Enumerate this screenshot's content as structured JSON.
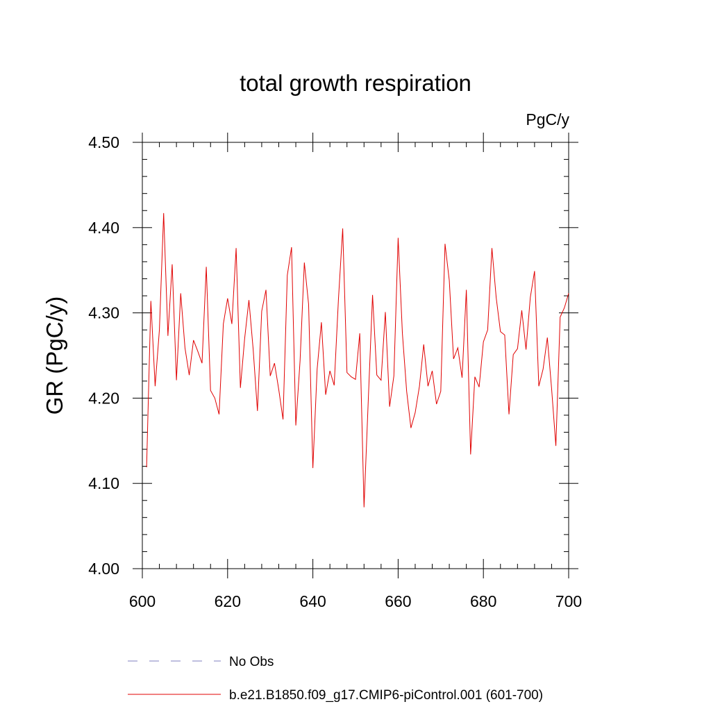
{
  "chart_data": {
    "type": "line",
    "title": "total growth respiration",
    "units": "PgC/y",
    "xlabel": "",
    "ylabel": "GR  (PgC/y)",
    "xlim": [
      600,
      700
    ],
    "ylim": [
      4.0,
      4.5
    ],
    "x_ticks": [
      "600",
      "620",
      "640",
      "660",
      "680",
      "700"
    ],
    "y_ticks": [
      "4.00",
      "4.10",
      "4.20",
      "4.30",
      "4.40",
      "4.50"
    ],
    "grid": false,
    "legend_position": "bottom",
    "legend": [
      {
        "label": "No Obs",
        "style": "dashed",
        "color": "#7f7fbf"
      },
      {
        "label": "b.e21.B1850.f09_g17.CMIP6-piControl.001 (601-700)",
        "style": "solid",
        "color": "#e00000"
      }
    ],
    "series": [
      {
        "name": "b.e21.B1850.f09_g17.CMIP6-piControl.001 (601-700)",
        "color": "#e00000",
        "x": [
          601,
          602,
          603,
          604,
          605,
          606,
          607,
          608,
          609,
          610,
          611,
          612,
          613,
          614,
          615,
          616,
          617,
          618,
          619,
          620,
          621,
          622,
          623,
          624,
          625,
          626,
          627,
          628,
          629,
          630,
          631,
          632,
          633,
          634,
          635,
          636,
          637,
          638,
          639,
          640,
          641,
          642,
          643,
          644,
          645,
          646,
          647,
          648,
          649,
          650,
          651,
          652,
          653,
          654,
          655,
          656,
          657,
          658,
          659,
          660,
          661,
          662,
          663,
          664,
          665,
          666,
          667,
          668,
          669,
          670,
          671,
          672,
          673,
          674,
          675,
          676,
          677,
          678,
          679,
          680,
          681,
          682,
          683,
          684,
          685,
          686,
          687,
          688,
          689,
          690,
          691,
          692,
          693,
          694,
          695,
          696,
          697,
          698,
          699,
          700
        ],
        "values": [
          4.119,
          4.314,
          4.214,
          4.28,
          4.417,
          4.273,
          4.357,
          4.221,
          4.323,
          4.259,
          4.227,
          4.268,
          4.255,
          4.241,
          4.354,
          4.209,
          4.2,
          4.181,
          4.287,
          4.317,
          4.287,
          4.376,
          4.212,
          4.27,
          4.315,
          4.257,
          4.185,
          4.302,
          4.327,
          4.226,
          4.241,
          4.21,
          4.175,
          4.344,
          4.377,
          4.168,
          4.244,
          4.359,
          4.31,
          4.118,
          4.234,
          4.289,
          4.204,
          4.232,
          4.215,
          4.316,
          4.399,
          4.23,
          4.225,
          4.222,
          4.276,
          4.072,
          4.198,
          4.321,
          4.227,
          4.221,
          4.301,
          4.19,
          4.226,
          4.388,
          4.276,
          4.208,
          4.165,
          4.183,
          4.214,
          4.263,
          4.214,
          4.232,
          4.193,
          4.208,
          4.381,
          4.338,
          4.246,
          4.259,
          4.224,
          4.327,
          4.134,
          4.225,
          4.213,
          4.266,
          4.28,
          4.376,
          4.318,
          4.278,
          4.274,
          4.181,
          4.251,
          4.258,
          4.303,
          4.257,
          4.318,
          4.349,
          4.214,
          4.234,
          4.271,
          4.211,
          4.144,
          4.295,
          4.306,
          4.323
        ]
      }
    ]
  }
}
